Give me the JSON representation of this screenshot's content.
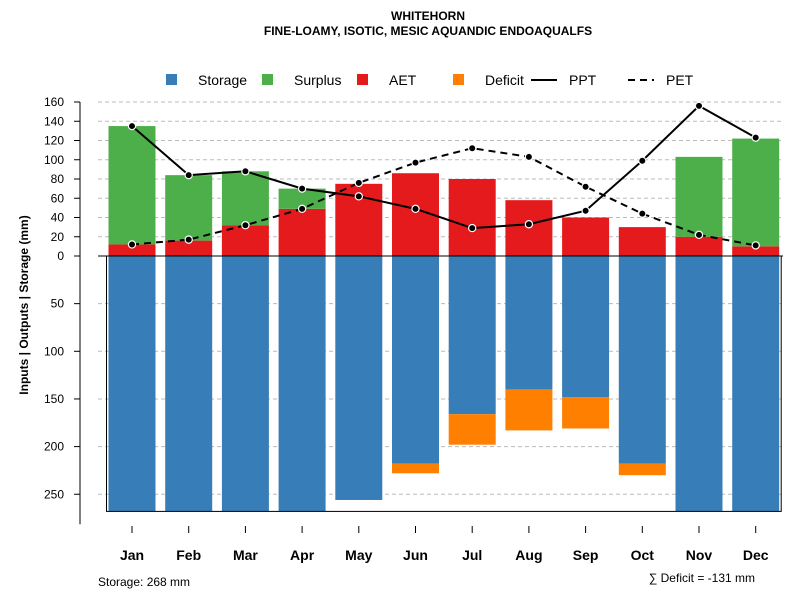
{
  "chart_data": {
    "type": "bar",
    "title": "WHITEHORN",
    "subtitle": "FINE-LOAMY, ISOTIC, MESIC AQUANDIC ENDOAQUALFS",
    "ylabel": "Inputs | Outputs | Storage    (mm)",
    "categories": [
      "Jan",
      "Feb",
      "Mar",
      "Apr",
      "May",
      "Jun",
      "Jul",
      "Aug",
      "Sep",
      "Oct",
      "Nov",
      "Dec"
    ],
    "upper_ticks": [
      0,
      20,
      40,
      60,
      80,
      100,
      120,
      140,
      160
    ],
    "lower_ticks": [
      50,
      100,
      150,
      200,
      250
    ],
    "ylim_upper": [
      0,
      160
    ],
    "ylim_lower": [
      0,
      268
    ],
    "series": [
      {
        "name": "AET",
        "color": "#e41a1c",
        "values": [
          12,
          16,
          32,
          49,
          75,
          86,
          80,
          58,
          40,
          30,
          20,
          10
        ]
      },
      {
        "name": "Surplus",
        "color": "#4daf4a",
        "values": [
          123,
          68,
          56,
          21,
          0,
          0,
          0,
          0,
          0,
          0,
          83,
          112
        ]
      },
      {
        "name": "Storage",
        "color": "#377eb8",
        "values": [
          268,
          268,
          268,
          268,
          256,
          218,
          166,
          140,
          148,
          218,
          268,
          268
        ]
      },
      {
        "name": "Deficit",
        "color": "#ff7f00",
        "values": [
          0,
          0,
          0,
          0,
          0,
          10,
          32,
          43,
          33,
          12,
          0,
          0
        ]
      },
      {
        "name": "PPT",
        "style": "solid",
        "values": [
          135,
          84,
          88,
          70,
          62,
          49,
          29,
          33,
          47,
          99,
          156,
          123
        ]
      },
      {
        "name": "PET",
        "style": "dashed",
        "values": [
          12,
          17,
          32,
          49,
          76,
          97,
          112,
          103,
          72,
          44,
          22,
          11
        ]
      }
    ],
    "legend": {
      "position": "top",
      "items": [
        {
          "label": "Storage",
          "kind": "box",
          "color": "#377eb8"
        },
        {
          "label": "Surplus",
          "kind": "box",
          "color": "#4daf4a"
        },
        {
          "label": "AET",
          "kind": "box",
          "color": "#e41a1c"
        },
        {
          "label": "Deficit",
          "kind": "box",
          "color": "#ff7f00"
        },
        {
          "label": "PPT",
          "kind": "line",
          "dash": false
        },
        {
          "label": "PET",
          "kind": "line",
          "dash": true
        }
      ]
    },
    "footer_left": "Storage: 268 mm",
    "footer_right": "∑ Deficit = -131 mm",
    "grid": true
  }
}
